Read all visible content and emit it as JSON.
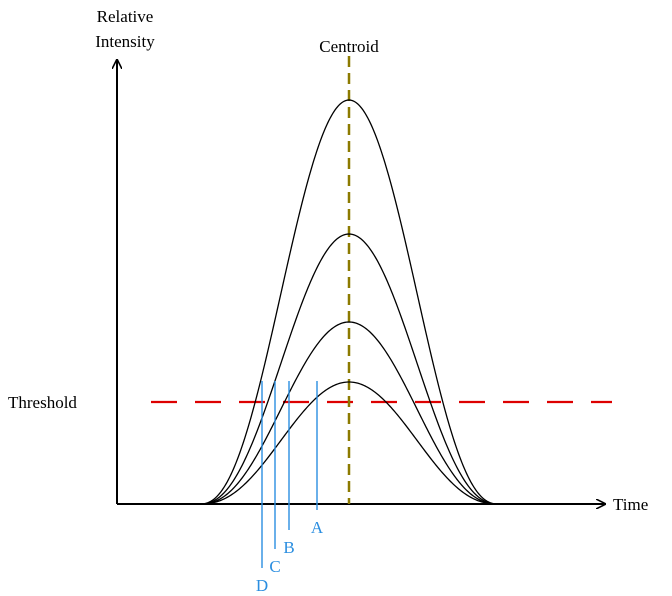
{
  "labels": {
    "y_axis_line1": "Relative",
    "y_axis_line2": "Intensity",
    "x_axis": "Time",
    "centroid": "Centroid",
    "threshold": "Threshold"
  },
  "markers": [
    {
      "letter": "A"
    },
    {
      "letter": "B"
    },
    {
      "letter": "C"
    },
    {
      "letter": "D"
    }
  ],
  "colors": {
    "axis": "#000000",
    "curves": "#000000",
    "threshold_line": "#dd0000",
    "centroid_line": "#8c7a00",
    "marker_lines": "#2b8ee0"
  }
}
